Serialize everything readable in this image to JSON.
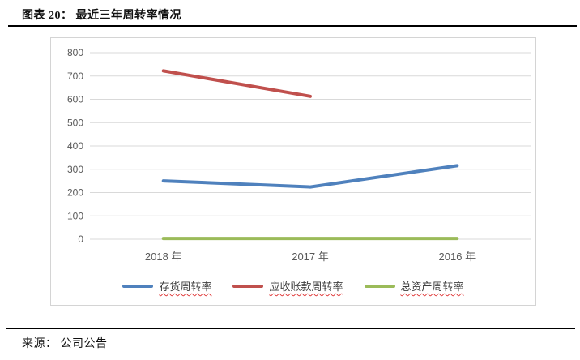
{
  "page": {
    "title": "图表 20： 最近三年周转率情况",
    "source": "来源： 公司公告"
  },
  "chart_data": {
    "type": "line",
    "title": "最近三年周转率情况",
    "categories": [
      "2018 年",
      "2017 年",
      "2016 年"
    ],
    "series": [
      {
        "name": "存货周转率",
        "color": "#4f81bd",
        "values": [
          250,
          224,
          315
        ]
      },
      {
        "name": "应收账款周转率",
        "color": "#c0504d",
        "values": [
          722,
          613,
          null
        ]
      },
      {
        "name": "总资产周转率",
        "color": "#9bbb59",
        "values": [
          3,
          3,
          3
        ]
      }
    ],
    "xlabel": "",
    "ylabel": "",
    "ylim": [
      0,
      800
    ],
    "yticks": [
      0,
      100,
      200,
      300,
      400,
      500,
      600,
      700,
      800
    ],
    "grid": true,
    "legend_position": "bottom",
    "gridline_color": "#d9d9d9",
    "axis_text_color": "#595959"
  }
}
